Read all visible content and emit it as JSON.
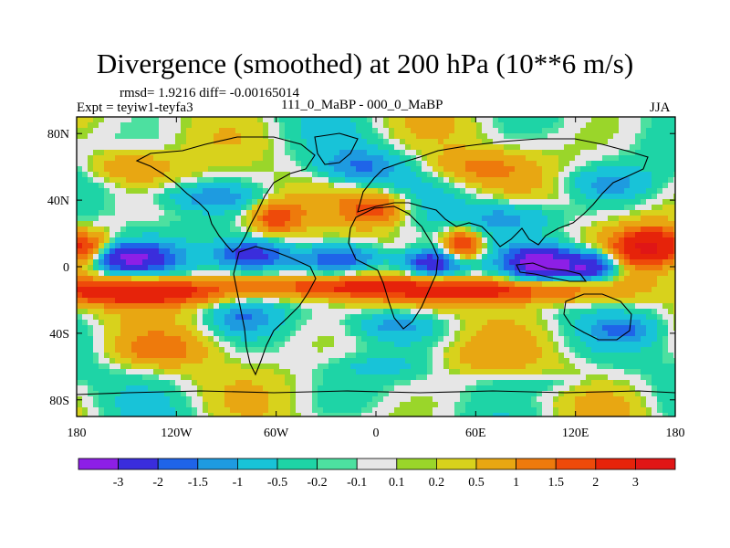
{
  "header": {
    "title": "Divergence (smoothed) at 200 hPa (10**6 m/s)",
    "stats": "rmsd= 1.9216 diff= -0.00165014",
    "expt": "Expt = teyiw1-teyfa3",
    "center": "111_0_MaBP - 000_0_MaBP",
    "season": "JJA"
  },
  "chart_data": {
    "type": "heatmap",
    "title": "Divergence (smoothed) at 200 hPa (10**6 m/s)",
    "xlabel": "",
    "ylabel": "",
    "x_ticks": [
      "180",
      "120W",
      "60W",
      "0",
      "60E",
      "120E",
      "180"
    ],
    "x_tick_values": [
      -180,
      -120,
      -60,
      0,
      60,
      120,
      180
    ],
    "y_ticks": [
      "80N",
      "40N",
      "0",
      "40S",
      "80S"
    ],
    "y_tick_values": [
      80,
      40,
      0,
      -40,
      -80
    ],
    "xlim": [
      -180,
      180
    ],
    "ylim": [
      -90,
      90
    ],
    "colorbar": {
      "labels": [
        "-3",
        "-2",
        "-1.5",
        "-1",
        "-0.5",
        "-0.2",
        "-0.1",
        "0.1",
        "0.2",
        "0.5",
        "1",
        "1.5",
        "2",
        "3"
      ],
      "colors": [
        "#8d1fe6",
        "#3a2ddc",
        "#1f64e8",
        "#1e9be0",
        "#18c3d8",
        "#1ed4a6",
        "#4de0a0",
        "#e6e6e6",
        "#9ad62a",
        "#d8d21c",
        "#e8a712",
        "#ee7a0c",
        "#ee4a0a",
        "#e6230a",
        "#e01616"
      ]
    },
    "features": [
      {
        "lon": -150,
        "lat": 5,
        "value": -3.2,
        "wlon": 28,
        "wlat": 9
      },
      {
        "lon": -75,
        "lat": 7,
        "value": -2.6,
        "wlon": 22,
        "wlat": 9
      },
      {
        "lon": -20,
        "lat": 5,
        "value": -1.8,
        "wlon": 25,
        "wlat": 8
      },
      {
        "lon": 35,
        "lat": 2,
        "value": -3.2,
        "wlon": 20,
        "wlat": 9
      },
      {
        "lon": 100,
        "lat": 2,
        "value": -3.4,
        "wlon": 20,
        "wlat": 10
      },
      {
        "lon": 130,
        "lat": 0,
        "value": -3.0,
        "wlon": 16,
        "wlat": 9
      },
      {
        "lon": -140,
        "lat": -15,
        "value": 3.0,
        "wlon": 50,
        "wlat": 8
      },
      {
        "lon": -30,
        "lat": -12,
        "value": 2.0,
        "wlon": 45,
        "wlat": 7
      },
      {
        "lon": 70,
        "lat": -14,
        "value": 2.5,
        "wlon": 70,
        "wlat": 8
      },
      {
        "lon": 165,
        "lat": 12,
        "value": 3.0,
        "wlon": 22,
        "wlat": 12
      },
      {
        "lon": -175,
        "lat": 10,
        "value": 2.5,
        "wlon": 15,
        "wlat": 10
      },
      {
        "lon": 52,
        "lat": 12,
        "value": 2.6,
        "wlon": 12,
        "wlat": 10
      },
      {
        "lon": -60,
        "lat": 30,
        "value": 1.8,
        "wlon": 15,
        "wlat": 10
      },
      {
        "lon": 0,
        "lat": 35,
        "value": 1.8,
        "wlon": 20,
        "wlat": 10
      },
      {
        "lon": -100,
        "lat": 42,
        "value": -1.2,
        "wlon": 30,
        "wlat": 8
      },
      {
        "lon": 80,
        "lat": 30,
        "value": -1.3,
        "wlon": 30,
        "wlat": 10
      },
      {
        "lon": 140,
        "lat": 50,
        "value": -1.0,
        "wlon": 25,
        "wlat": 10
      },
      {
        "lon": -10,
        "lat": 60,
        "value": -1.4,
        "wlon": 25,
        "wlat": 10
      },
      {
        "lon": -150,
        "lat": 60,
        "value": 1.0,
        "wlon": 25,
        "wlat": 10
      },
      {
        "lon": 60,
        "lat": 60,
        "value": 1.0,
        "wlon": 30,
        "wlat": 10
      },
      {
        "lon": -80,
        "lat": -30,
        "value": -1.2,
        "wlon": 20,
        "wlat": 10
      },
      {
        "lon": 10,
        "lat": -35,
        "value": -1.0,
        "wlon": 25,
        "wlat": 8
      },
      {
        "lon": 150,
        "lat": -38,
        "value": -1.2,
        "wlon": 20,
        "wlat": 8
      },
      {
        "lon": -130,
        "lat": -50,
        "value": 0.9,
        "wlon": 30,
        "wlat": 10
      },
      {
        "lon": 60,
        "lat": -55,
        "value": 0.5,
        "wlon": 30,
        "wlat": 10
      },
      {
        "lon": 100,
        "lat": -70,
        "value": -0.5,
        "wlon": 30,
        "wlat": 6
      },
      {
        "lon": 0,
        "lat": -60,
        "value": -0.4,
        "wlon": 30,
        "wlat": 6
      }
    ]
  }
}
